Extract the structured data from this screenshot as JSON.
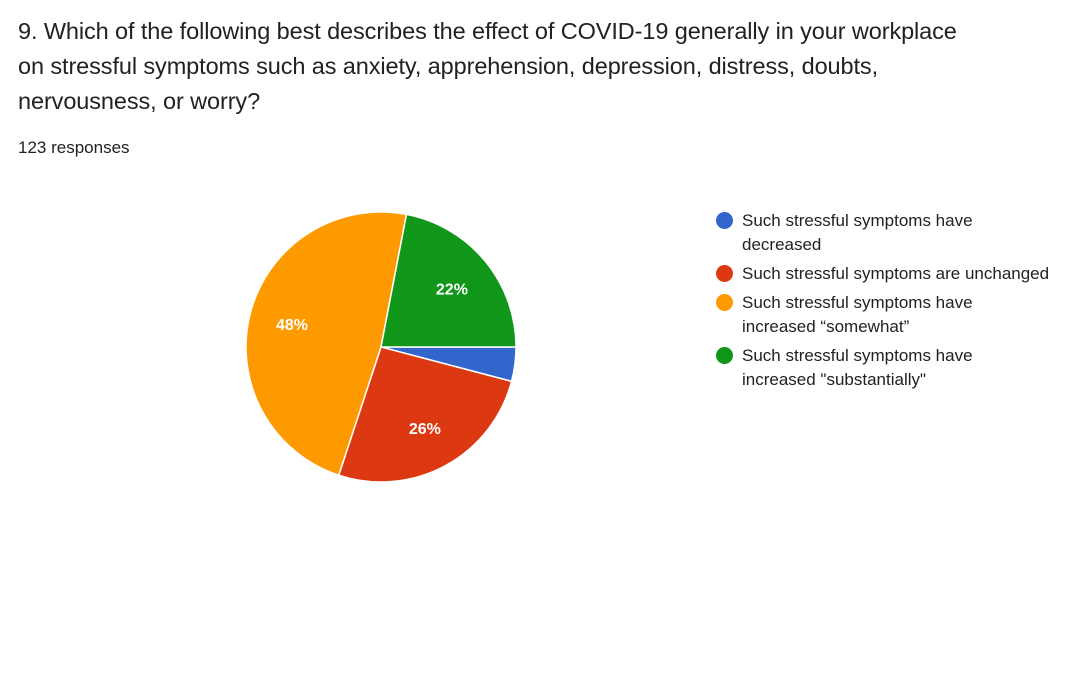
{
  "question": {
    "line1": "9. Which of the following best describes the effect of COVID-19 generally in your workplace",
    "line2": "on stressful symptoms such as anxiety, apprehension, depression, distress, doubts,",
    "line3": "nervousness, or worry?"
  },
  "responses_label": "123 responses",
  "chart_data": {
    "type": "pie",
    "total_responses": 123,
    "start_angle_deg": 90,
    "direction": "clockwise",
    "legend_position": "right",
    "slices": [
      {
        "label": "Such stressful symptoms have decreased",
        "legend_line1": "Such stressful symptoms have",
        "legend_line2": "decreased",
        "value": 4.1,
        "data_label": "",
        "color": "#3366cc"
      },
      {
        "label": "Such stressful symptoms are unchanged",
        "legend_line1": "Such stressful symptoms are unchanged",
        "legend_line2": "",
        "value": 26,
        "data_label": "26%",
        "color": "#dc3912"
      },
      {
        "label": "Such stressful symptoms have increased “somewhat”",
        "legend_line1": "Such stressful symptoms have",
        "legend_line2": "increased “somewhat”",
        "value": 48,
        "data_label": "48%",
        "color": "#ff9900"
      },
      {
        "label": "Such stressful symptoms have increased \"substantially\"",
        "legend_line1": "Such stressful symptoms have",
        "legend_line2": "increased \"substantially\"",
        "value": 22,
        "data_label": "22%",
        "color": "#109618"
      }
    ]
  }
}
